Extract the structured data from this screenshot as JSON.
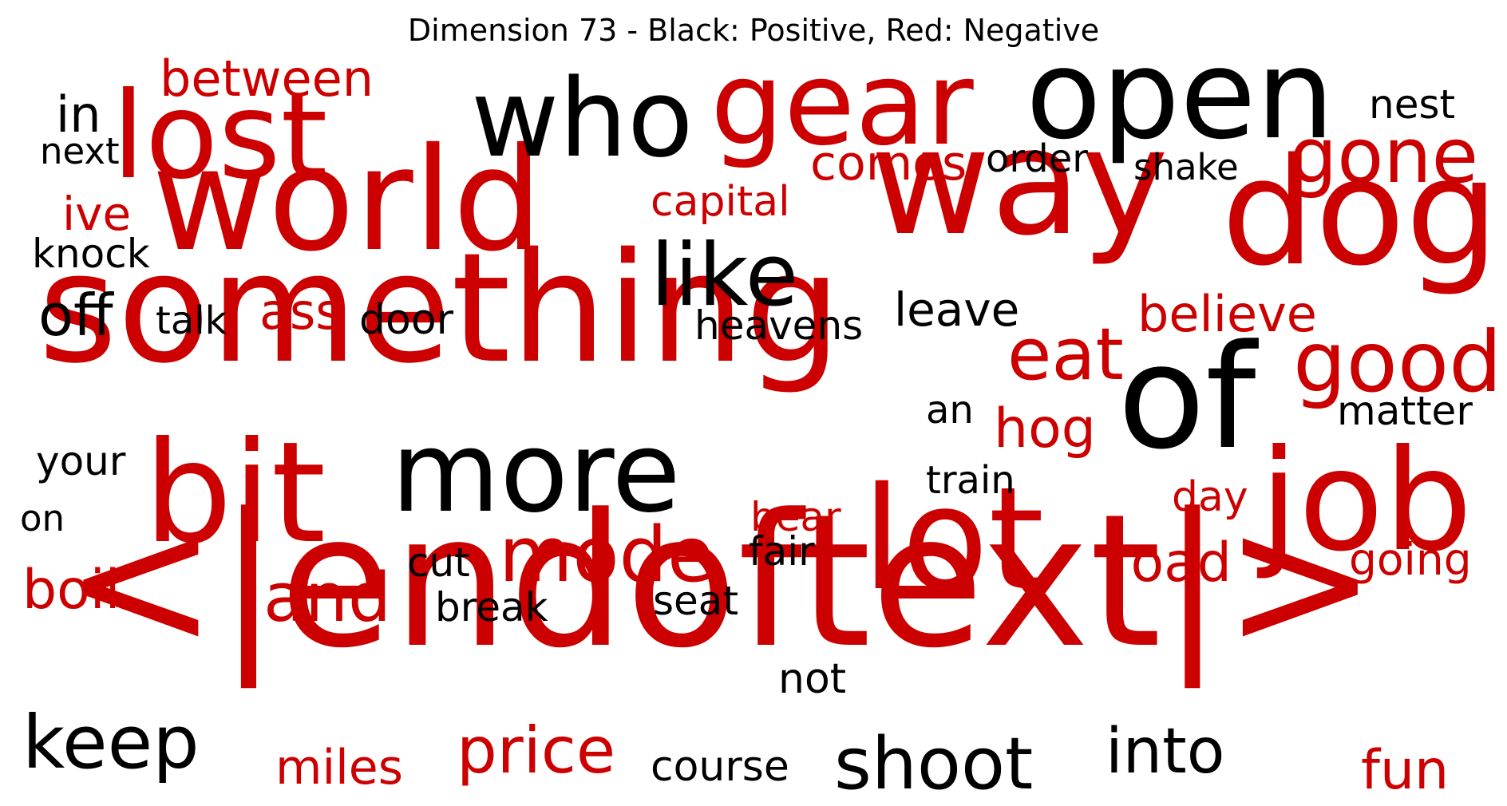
{
  "title": "Dimension 73 - Black: Positive, Red: Negative",
  "colors": {
    "positive": "#000000",
    "negative": "#cc0000"
  },
  "words": [
    {
      "text": "<|endoftext|>",
      "polarity": "negative"
    },
    {
      "text": "something",
      "polarity": "negative"
    },
    {
      "text": "world",
      "polarity": "negative"
    },
    {
      "text": "way",
      "polarity": "negative"
    },
    {
      "text": "dog",
      "polarity": "negative"
    },
    {
      "text": "lost",
      "polarity": "negative"
    },
    {
      "text": "gear",
      "polarity": "negative"
    },
    {
      "text": "lot",
      "polarity": "negative"
    },
    {
      "text": "bit",
      "polarity": "negative"
    },
    {
      "text": "job",
      "polarity": "negative"
    },
    {
      "text": "open",
      "polarity": "positive"
    },
    {
      "text": "who",
      "polarity": "positive"
    },
    {
      "text": "of",
      "polarity": "positive"
    },
    {
      "text": "more",
      "polarity": "positive"
    },
    {
      "text": "like",
      "polarity": "positive"
    },
    {
      "text": "gone",
      "polarity": "negative"
    },
    {
      "text": "good",
      "polarity": "negative"
    },
    {
      "text": "eat",
      "polarity": "negative"
    },
    {
      "text": "mode",
      "polarity": "negative"
    },
    {
      "text": "and",
      "polarity": "negative"
    },
    {
      "text": "price",
      "polarity": "negative"
    },
    {
      "text": "shoot",
      "polarity": "positive"
    },
    {
      "text": "keep",
      "polarity": "positive"
    },
    {
      "text": "into",
      "polarity": "positive"
    },
    {
      "text": "between",
      "polarity": "negative"
    },
    {
      "text": "believe",
      "polarity": "negative"
    },
    {
      "text": "comes",
      "polarity": "negative"
    },
    {
      "text": "road",
      "polarity": "negative"
    },
    {
      "text": "hog",
      "polarity": "negative"
    },
    {
      "text": "fun",
      "polarity": "negative"
    },
    {
      "text": "miles",
      "polarity": "negative"
    },
    {
      "text": "boil",
      "polarity": "negative"
    },
    {
      "text": "ass",
      "polarity": "negative"
    },
    {
      "text": "capital",
      "polarity": "negative"
    },
    {
      "text": "going",
      "polarity": "negative"
    },
    {
      "text": "bear",
      "polarity": "negative"
    },
    {
      "text": "ive",
      "polarity": "negative"
    },
    {
      "text": "day",
      "polarity": "negative"
    },
    {
      "text": "in",
      "polarity": "positive"
    },
    {
      "text": "next",
      "polarity": "positive"
    },
    {
      "text": "knock",
      "polarity": "positive"
    },
    {
      "text": "off",
      "polarity": "positive"
    },
    {
      "text": "talk",
      "polarity": "positive"
    },
    {
      "text": "door",
      "polarity": "positive"
    },
    {
      "text": "heavens",
      "polarity": "positive"
    },
    {
      "text": "leave",
      "polarity": "positive"
    },
    {
      "text": "order",
      "polarity": "positive"
    },
    {
      "text": "shake",
      "polarity": "positive"
    },
    {
      "text": "nest",
      "polarity": "positive"
    },
    {
      "text": "matter",
      "polarity": "positive"
    },
    {
      "text": "an",
      "polarity": "positive"
    },
    {
      "text": "train",
      "polarity": "positive"
    },
    {
      "text": "your",
      "polarity": "positive"
    },
    {
      "text": "on",
      "polarity": "positive"
    },
    {
      "text": "cut",
      "polarity": "positive"
    },
    {
      "text": "fair",
      "polarity": "positive"
    },
    {
      "text": "break",
      "polarity": "positive"
    },
    {
      "text": "seat",
      "polarity": "positive"
    },
    {
      "text": "not",
      "polarity": "positive"
    },
    {
      "text": "course",
      "polarity": "positive"
    }
  ]
}
